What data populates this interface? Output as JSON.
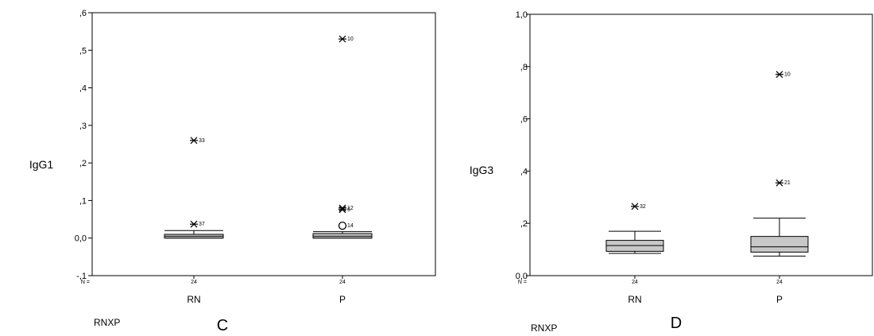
{
  "chart_data": [
    {
      "type": "box",
      "panel_label": "C",
      "ylabel": "IgG1",
      "bottom_label": "RNXP",
      "n_label": "N =",
      "ylim": [
        -0.1,
        0.6
      ],
      "yticks": [
        -0.1,
        0,
        0.1,
        0.2,
        0.3,
        0.4,
        0.5,
        0.6
      ],
      "ytick_labels": [
        "-,1",
        "0,0",
        ",1",
        ",2",
        ",3",
        ",4",
        ",5",
        ",6"
      ],
      "categories": [
        "RN",
        "P"
      ],
      "groups": [
        {
          "label": "RN",
          "n": "24",
          "whisker_low": 0.0,
          "q1": 0.0,
          "median": 0.005,
          "q3": 0.01,
          "whisker_high": 0.02,
          "outliers": [
            {
              "value": 0.26,
              "marker": "star",
              "label": "33"
            },
            {
              "value": 0.037,
              "marker": "star",
              "label": "37"
            }
          ]
        },
        {
          "label": "P",
          "n": "24",
          "whisker_low": 0.0,
          "q1": 0.0,
          "median": 0.005,
          "q3": 0.012,
          "whisker_high": 0.017,
          "outliers": [
            {
              "value": 0.53,
              "marker": "star",
              "label": "10"
            },
            {
              "value": 0.08,
              "marker": "star",
              "label": "12"
            },
            {
              "value": 0.076,
              "marker": "star",
              "label": "6"
            },
            {
              "value": 0.033,
              "marker": "circle",
              "label": "14"
            }
          ]
        }
      ]
    },
    {
      "type": "box",
      "panel_label": "D",
      "ylabel": "IgG3",
      "bottom_label": "RNXP",
      "n_label": "N =",
      "ylim": [
        0,
        1.0
      ],
      "yticks": [
        0,
        0.2,
        0.4,
        0.6,
        0.8,
        1.0
      ],
      "ytick_labels": [
        "0,0",
        ",2",
        ",4",
        ",6",
        ",8",
        "1,0"
      ],
      "categories": [
        "RN",
        "P"
      ],
      "groups": [
        {
          "label": "RN",
          "n": "24",
          "whisker_low": 0.085,
          "q1": 0.093,
          "median": 0.115,
          "q3": 0.135,
          "whisker_high": 0.17,
          "outliers": [
            {
              "value": 0.265,
              "marker": "star",
              "label": "32"
            }
          ]
        },
        {
          "label": "P",
          "n": "24",
          "whisker_low": 0.075,
          "q1": 0.09,
          "median": 0.11,
          "q3": 0.15,
          "whisker_high": 0.22,
          "outliers": [
            {
              "value": 0.77,
              "marker": "star",
              "label": "10"
            },
            {
              "value": 0.355,
              "marker": "star",
              "label": "21"
            }
          ]
        }
      ]
    }
  ]
}
